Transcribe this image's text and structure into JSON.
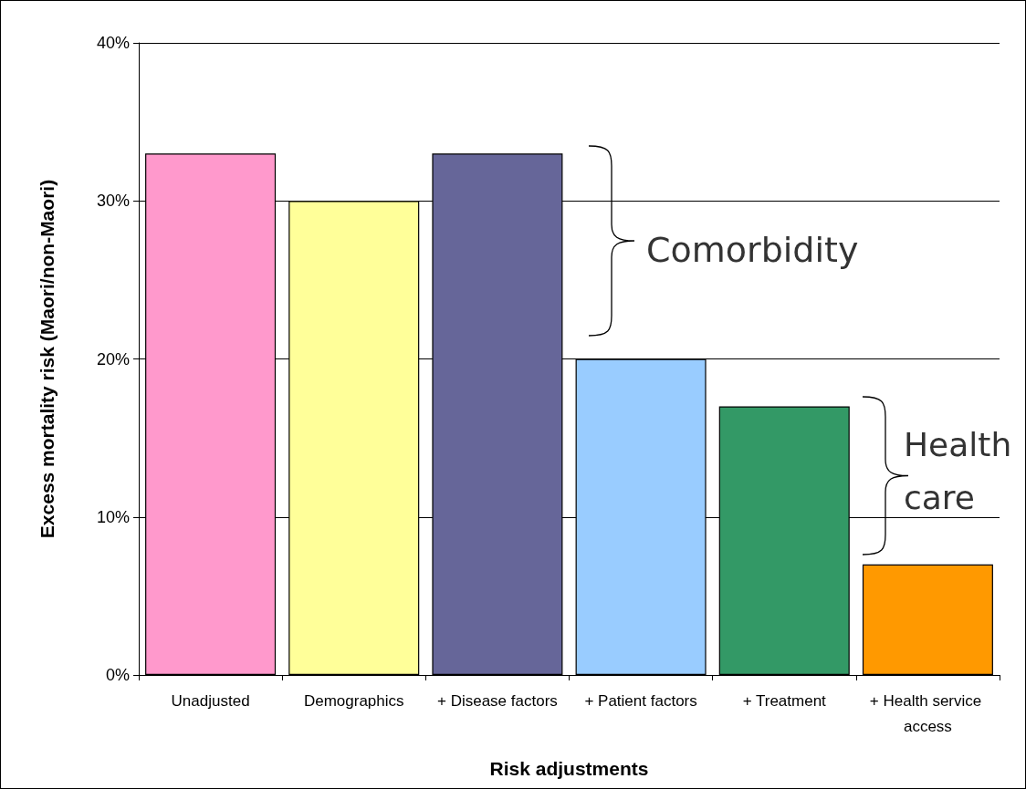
{
  "chart_data": {
    "type": "bar",
    "xlabel": "Risk adjustments",
    "ylabel": "Excess mortality risk (Maori/non-Maori)",
    "categories": [
      "Unadjusted",
      "Demographics",
      "+ Disease factors",
      "+ Patient factors",
      "+ Treatment",
      "+ Health service access"
    ],
    "values": [
      33,
      30,
      33,
      20,
      17,
      7
    ],
    "colors": [
      "#ff99cc",
      "#ffff99",
      "#666699",
      "#99ccff",
      "#339966",
      "#ff9900"
    ],
    "ylim": [
      0,
      40
    ],
    "yticks": [
      {
        "value": 0,
        "label": "0%"
      },
      {
        "value": 10,
        "label": "10%"
      },
      {
        "value": 20,
        "label": "20%"
      },
      {
        "value": 30,
        "label": "30%"
      },
      {
        "value": 40,
        "label": "40%"
      }
    ],
    "grid": "y",
    "annotations": [
      "Comorbidity",
      "Health care"
    ]
  }
}
